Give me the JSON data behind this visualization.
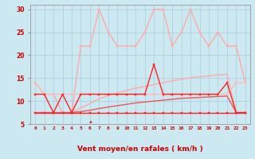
{
  "x": [
    0,
    1,
    2,
    3,
    4,
    5,
    6,
    7,
    8,
    9,
    10,
    11,
    12,
    13,
    14,
    15,
    16,
    17,
    18,
    19,
    20,
    21,
    22,
    23
  ],
  "background_color": "#cce8f0",
  "grid_color": "#aaccdd",
  "xlabel": "Vent moyen/en rafales ( km/h )",
  "ylim": [
    5,
    31
  ],
  "xlim": [
    -0.5,
    23.5
  ],
  "yticks": [
    5,
    10,
    15,
    20,
    25,
    30
  ],
  "ytick_labels": [
    "5",
    "10",
    "15",
    "20",
    "25",
    "30"
  ],
  "line_flat": {
    "y": [
      7.5,
      7.5,
      7.5,
      7.5,
      7.5,
      7.5,
      7.5,
      7.5,
      7.5,
      7.5,
      7.5,
      7.5,
      7.5,
      7.5,
      7.5,
      7.5,
      7.5,
      7.5,
      7.5,
      7.5,
      7.5,
      7.5,
      7.5,
      7.5
    ],
    "color": "#ff2222",
    "lw": 1.0,
    "marker": "s",
    "ms": 2.0,
    "zorder": 5
  },
  "line_diag1": {
    "y": [
      7.5,
      7.5,
      7.5,
      7.5,
      7.5,
      7.7,
      8.0,
      8.4,
      8.7,
      9.0,
      9.3,
      9.6,
      9.8,
      10.0,
      10.2,
      10.4,
      10.6,
      10.7,
      10.8,
      10.9,
      11.0,
      11.1,
      7.5,
      7.5
    ],
    "color": "#ee5555",
    "lw": 1.0,
    "marker": null,
    "ms": 0,
    "zorder": 3
  },
  "line_diag2": {
    "y": [
      7.5,
      7.5,
      7.5,
      7.5,
      7.5,
      8.5,
      9.5,
      10.5,
      11.2,
      11.8,
      12.3,
      12.8,
      13.2,
      13.6,
      14.0,
      14.4,
      14.8,
      15.1,
      15.3,
      15.5,
      15.7,
      15.8,
      7.5,
      7.5
    ],
    "color": "#ffaaaa",
    "lw": 1.0,
    "marker": null,
    "ms": 0,
    "zorder": 2
  },
  "line_mid": {
    "y": [
      14.0,
      11.5,
      11.5,
      11.5,
      11.5,
      11.5,
      11.5,
      11.5,
      11.5,
      11.5,
      11.5,
      11.5,
      11.5,
      11.5,
      11.5,
      11.5,
      11.5,
      11.5,
      11.5,
      11.5,
      11.5,
      11.5,
      14.0,
      14.0
    ],
    "color": "#ffbbbb",
    "lw": 1.0,
    "marker": "s",
    "ms": 2.0,
    "zorder": 2
  },
  "line_zigzag": {
    "y": [
      11.5,
      11.5,
      7.5,
      11.5,
      7.5,
      11.5,
      11.5,
      11.5,
      11.5,
      11.5,
      11.5,
      11.5,
      11.5,
      18.0,
      11.5,
      11.5,
      11.5,
      11.5,
      11.5,
      11.5,
      11.5,
      14.0,
      7.5,
      7.5
    ],
    "color": "#ff2222",
    "lw": 1.0,
    "marker": "s",
    "ms": 2.0,
    "zorder": 4
  },
  "line_high": {
    "y": [
      14.0,
      11.5,
      11.5,
      7.5,
      7.5,
      22.0,
      22.0,
      30.0,
      25.0,
      22.0,
      22.0,
      22.0,
      25.0,
      30.0,
      30.0,
      22.0,
      25.0,
      30.0,
      25.0,
      22.0,
      25.0,
      22.0,
      22.0,
      14.0
    ],
    "color": "#ffaaaa",
    "lw": 1.0,
    "marker": "s",
    "ms": 2.0,
    "zorder": 2
  },
  "arrow_color": "#cc2222",
  "arrow_angles_deg": [
    200,
    210,
    200,
    200,
    200,
    210,
    230,
    200,
    200,
    200,
    200,
    200,
    200,
    200,
    200,
    200,
    200,
    200,
    200,
    200,
    200,
    190,
    175,
    195
  ]
}
